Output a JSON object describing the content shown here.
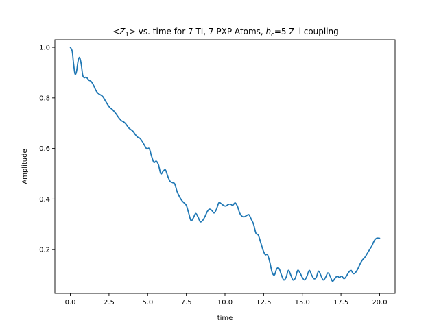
{
  "chart_data": {
    "type": "line",
    "title": {
      "p1": "<",
      "p2": "Z",
      "p3": "1",
      "p4": "> vs. time for 7 TI, 7 PXP Atoms, ",
      "p5": "h",
      "p6": "c",
      "p7": "=5 Z_i coupling"
    },
    "xlabel": "time",
    "ylabel": "Amplitude",
    "xlim": [
      -1.0,
      21.0
    ],
    "ylim": [
      0.027,
      1.03
    ],
    "xticks": [
      0.0,
      2.5,
      5.0,
      7.5,
      10.0,
      12.5,
      15.0,
      17.5,
      20.0
    ],
    "xtick_labels": [
      "0.0",
      "2.5",
      "5.0",
      "7.5",
      "10.0",
      "12.5",
      "15.0",
      "17.5",
      "20.0"
    ],
    "yticks": [
      0.2,
      0.4,
      0.6,
      0.8,
      1.0
    ],
    "ytick_labels": [
      "0.2",
      "0.4",
      "0.6",
      "0.8",
      "1.0"
    ],
    "grid": false,
    "color": "#1f77b4",
    "series": [
      {
        "x": [
          0.0,
          0.12,
          0.2,
          0.3,
          0.4,
          0.5,
          0.6,
          0.7,
          0.8,
          0.9,
          1.0,
          1.1,
          1.2,
          1.35,
          1.5,
          1.65,
          1.8,
          1.95,
          2.1,
          2.25,
          2.4,
          2.55,
          2.7,
          2.85,
          3.0,
          3.15,
          3.3,
          3.45,
          3.6,
          3.75,
          3.9,
          4.05,
          4.2,
          4.35,
          4.5,
          4.65,
          4.8,
          4.95,
          5.1,
          5.25,
          5.4,
          5.55,
          5.7,
          5.85,
          6.0,
          6.15,
          6.3,
          6.45,
          6.6,
          6.75,
          6.9,
          7.05,
          7.2,
          7.35,
          7.5,
          7.65,
          7.8,
          7.95,
          8.1,
          8.25,
          8.4,
          8.55,
          8.7,
          8.85,
          9.0,
          9.15,
          9.3,
          9.45,
          9.6,
          9.75,
          9.9,
          10.05,
          10.2,
          10.35,
          10.5,
          10.65,
          10.8,
          10.95,
          11.1,
          11.25,
          11.4,
          11.55,
          11.7,
          11.85,
          12.0,
          12.15,
          12.3,
          12.45,
          12.6,
          12.75,
          12.9,
          13.05,
          13.2,
          13.35,
          13.5,
          13.65,
          13.8,
          13.95,
          14.1,
          14.25,
          14.4,
          14.55,
          14.7,
          14.85,
          15.0,
          15.15,
          15.3,
          15.45,
          15.6,
          15.75,
          15.9,
          16.05,
          16.2,
          16.35,
          16.5,
          16.65,
          16.8,
          16.95,
          17.1,
          17.25,
          17.4,
          17.55,
          17.7,
          17.85,
          18.0,
          18.15,
          18.3,
          18.45,
          18.6,
          18.75,
          18.9,
          19.05,
          19.2,
          19.35,
          19.5,
          19.65,
          19.8,
          20.0
        ],
        "y": [
          1.0,
          0.985,
          0.94,
          0.895,
          0.905,
          0.945,
          0.96,
          0.935,
          0.89,
          0.88,
          0.882,
          0.878,
          0.87,
          0.865,
          0.85,
          0.83,
          0.818,
          0.812,
          0.805,
          0.79,
          0.775,
          0.762,
          0.755,
          0.745,
          0.733,
          0.72,
          0.71,
          0.705,
          0.696,
          0.683,
          0.675,
          0.668,
          0.655,
          0.645,
          0.64,
          0.628,
          0.612,
          0.598,
          0.6,
          0.57,
          0.545,
          0.55,
          0.535,
          0.5,
          0.51,
          0.515,
          0.49,
          0.47,
          0.465,
          0.46,
          0.43,
          0.41,
          0.395,
          0.385,
          0.375,
          0.345,
          0.315,
          0.325,
          0.343,
          0.33,
          0.31,
          0.315,
          0.33,
          0.35,
          0.36,
          0.355,
          0.345,
          0.36,
          0.385,
          0.382,
          0.375,
          0.372,
          0.378,
          0.38,
          0.375,
          0.385,
          0.372,
          0.345,
          0.332,
          0.33,
          0.335,
          0.338,
          0.32,
          0.3,
          0.265,
          0.258,
          0.23,
          0.2,
          0.18,
          0.18,
          0.15,
          0.11,
          0.1,
          0.125,
          0.125,
          0.1,
          0.08,
          0.09,
          0.118,
          0.1,
          0.08,
          0.088,
          0.118,
          0.108,
          0.09,
          0.08,
          0.095,
          0.118,
          0.1,
          0.085,
          0.09,
          0.115,
          0.098,
          0.08,
          0.09,
          0.108,
          0.095,
          0.075,
          0.085,
          0.095,
          0.09,
          0.095,
          0.085,
          0.095,
          0.11,
          0.118,
          0.105,
          0.11,
          0.125,
          0.145,
          0.16,
          0.17,
          0.185,
          0.2,
          0.215,
          0.235,
          0.245,
          0.245
        ]
      }
    ]
  }
}
